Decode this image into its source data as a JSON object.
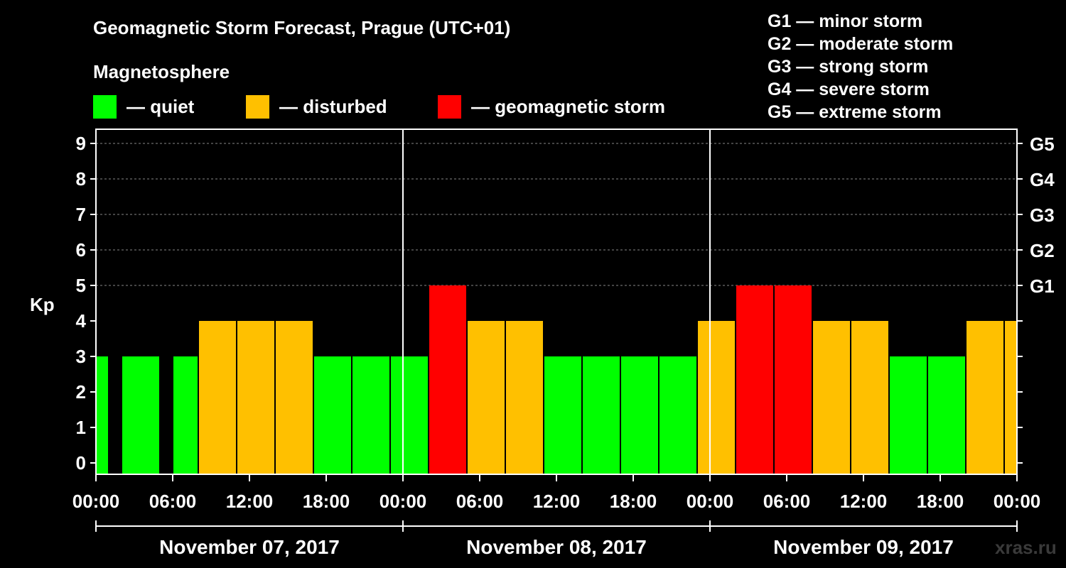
{
  "title": "Geomagnetic Storm Forecast, Prague (UTC+01)",
  "subtitle": "Magnetosphere",
  "legend": [
    {
      "label": "— quiet",
      "color": "#00ff00"
    },
    {
      "label": "— disturbed",
      "color": "#ffc000"
    },
    {
      "label": "— geomagnetic storm",
      "color": "#ff0000"
    }
  ],
  "g_scale": [
    "G1 — minor storm",
    "G2 — moderate storm",
    "G3 — strong storm",
    "G4 — severe storm",
    "G5 — extreme storm"
  ],
  "watermark": "xras.ru",
  "chart_data": {
    "type": "bar",
    "title": "Geomagnetic Storm Forecast, Prague (UTC+01)",
    "ylabel": "Kp",
    "ylim": [
      0,
      9
    ],
    "y_ticks": [
      "0",
      "1",
      "2",
      "3",
      "4",
      "5",
      "6",
      "7",
      "8",
      "9"
    ],
    "right_axis_ticks": [
      {
        "kp": 5,
        "label": "G1"
      },
      {
        "kp": 6,
        "label": "G2"
      },
      {
        "kp": 7,
        "label": "G3"
      },
      {
        "kp": 8,
        "label": "G4"
      },
      {
        "kp": 9,
        "label": "G5"
      }
    ],
    "x_ticks": [
      "00:00",
      "06:00",
      "12:00",
      "18:00",
      "00:00",
      "06:00",
      "12:00",
      "18:00",
      "00:00",
      "06:00",
      "12:00",
      "18:00",
      "00:00"
    ],
    "dates": [
      "November 07, 2017",
      "November 08, 2017",
      "November 09, 2017"
    ],
    "categories": [
      "Nov 07 00:00",
      "Nov 07 03:00",
      "Nov 07 06:00",
      "Nov 07 09:00",
      "Nov 07 12:00",
      "Nov 07 15:00",
      "Nov 07 18:00",
      "Nov 07 21:00",
      "Nov 08 00:00",
      "Nov 08 03:00",
      "Nov 08 06:00",
      "Nov 08 09:00",
      "Nov 08 12:00",
      "Nov 08 15:00",
      "Nov 08 18:00",
      "Nov 08 21:00",
      "Nov 09 00:00",
      "Nov 09 03:00",
      "Nov 09 06:00",
      "Nov 09 09:00",
      "Nov 09 12:00",
      "Nov 09 15:00",
      "Nov 09 18:00",
      "Nov 09 21:00",
      "Nov 10 00:00"
    ],
    "values": [
      3,
      3,
      3,
      4,
      4,
      4,
      3,
      3,
      3,
      5,
      4,
      4,
      3,
      3,
      3,
      3,
      4,
      5,
      5,
      4,
      4,
      3,
      3,
      4,
      4
    ],
    "bar_start_hour": [
      0,
      2,
      6,
      8,
      11,
      14,
      17,
      20,
      23,
      26,
      29,
      32,
      35,
      38,
      41,
      44,
      47,
      50,
      53,
      56,
      59,
      62,
      65,
      68,
      71
    ],
    "bar_end_hour": [
      1,
      5,
      8,
      11,
      14,
      17,
      20,
      23,
      26,
      29,
      32,
      35,
      38,
      41,
      44,
      47,
      50,
      53,
      56,
      59,
      62,
      65,
      68,
      71,
      72
    ],
    "colors": {
      "quiet": "#00ff00",
      "disturbed": "#ffc000",
      "storm": "#ff0000"
    },
    "grid": true,
    "legend_position": "top-left"
  }
}
